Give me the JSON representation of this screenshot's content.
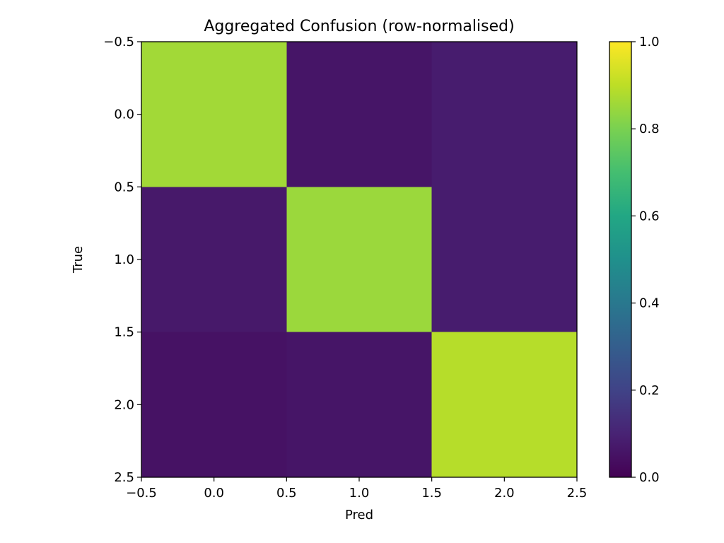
{
  "chart_data": {
    "type": "heatmap",
    "title": "Aggregated Confusion (row-normalised)",
    "xlabel": "Pred",
    "ylabel": "True",
    "x_ticks": [
      "−0.5",
      "0.0",
      "0.5",
      "1.0",
      "1.5",
      "2.0",
      "2.5"
    ],
    "y_ticks": [
      "−0.5",
      "0.0",
      "0.5",
      "1.0",
      "1.5",
      "2.0",
      "2.5"
    ],
    "xlim": [
      -0.5,
      2.5
    ],
    "ylim": [
      2.5,
      -0.5
    ],
    "rows": [
      0,
      1,
      2
    ],
    "columns": [
      0,
      1,
      2
    ],
    "values": [
      [
        0.86,
        0.06,
        0.08
      ],
      [
        0.07,
        0.85,
        0.08
      ],
      [
        0.05,
        0.06,
        0.89
      ]
    ],
    "colorbar": {
      "colormap": "viridis",
      "range": [
        0.0,
        1.0
      ],
      "tick_values": [
        0.0,
        0.2,
        0.4,
        0.6,
        0.8,
        1.0
      ],
      "tick_labels": [
        "0.0",
        "0.2",
        "0.4",
        "0.6",
        "0.8",
        "1.0"
      ]
    },
    "grid": false
  }
}
